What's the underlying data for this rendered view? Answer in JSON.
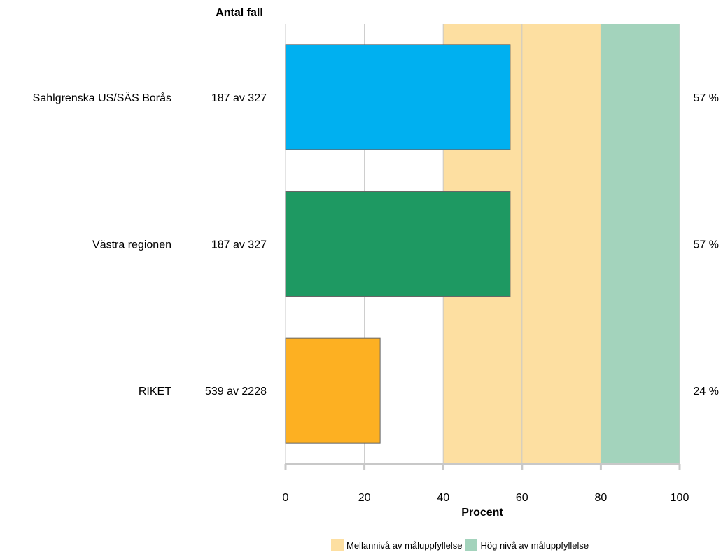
{
  "chart_data": {
    "type": "bar",
    "orientation": "horizontal",
    "categories": [
      "Sahlgrenska US/SÄS Borås",
      "Västra regionen",
      "RIKET"
    ],
    "values": [
      57,
      57,
      24
    ],
    "value_labels": [
      "57 %",
      "57 %",
      "24 %"
    ],
    "case_counts": [
      "187 av 327",
      "187 av 327",
      "539 av 2228"
    ],
    "bar_colors": [
      "#00b0f0",
      "#1e9962",
      "#fdb022"
    ],
    "count_header": "Antal fall",
    "xlabel": "Procent",
    "xlim": [
      0,
      100
    ],
    "xticks": [
      "0",
      "20",
      "40",
      "60",
      "80",
      "100"
    ],
    "grid": true,
    "target_bands": [
      {
        "name": "Mellannivå av måluppfyllelse",
        "from": 40,
        "to": 80,
        "color": "#fddfa1"
      },
      {
        "name": "Hög nivå av måluppfyllelse",
        "from": 80,
        "to": 100,
        "color": "#a3d3bc"
      }
    ],
    "legend_position": "bottom"
  }
}
